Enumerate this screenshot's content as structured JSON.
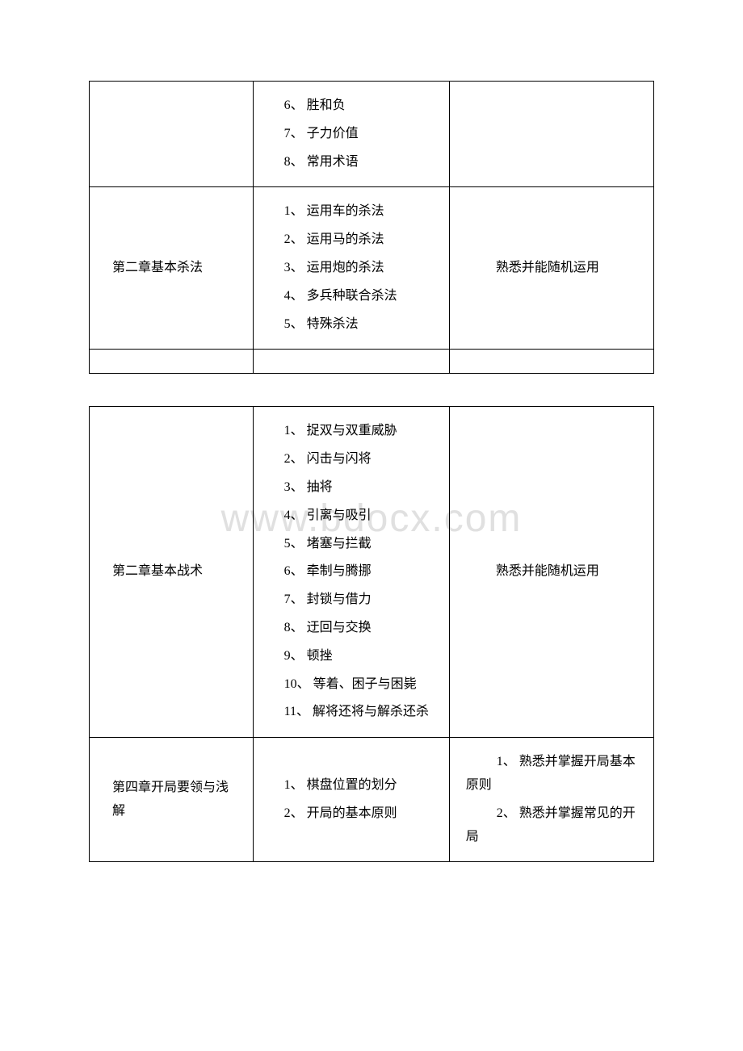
{
  "watermark": "www.bdocx.com",
  "table1": {
    "rows": [
      {
        "col1": "",
        "col2_items": [
          {
            "text": "6、 胜和负",
            "wrap": false
          },
          {
            "text": "7、 子力价值",
            "wrap": false
          },
          {
            "text": "8、 常用术语",
            "wrap": false
          }
        ],
        "col3": ""
      },
      {
        "col1": "第二章基本杀法",
        "col2_items": [
          {
            "text": "1、 运用车的杀法",
            "wrap": false
          },
          {
            "text": "2、 运用马的杀法",
            "wrap": false
          },
          {
            "text": "3、 运用炮的杀法",
            "wrap": false
          },
          {
            "text": "4、 多兵种联合杀法",
            "wrap": true
          },
          {
            "text": "5、 特殊杀法",
            "wrap": false
          }
        ],
        "col3": "熟悉并能随机运用",
        "col3_centered": true
      }
    ]
  },
  "table2": {
    "rows": [
      {
        "col1": "第二章基本战术",
        "col2_items": [
          {
            "text": "1、 捉双与双重威胁",
            "wrap": true
          },
          {
            "text": "2、 闪击与闪将",
            "wrap": false
          },
          {
            "text": "3、 抽将",
            "wrap": false
          },
          {
            "text": "4、 引离与吸引",
            "wrap": false
          },
          {
            "text": "5、 堵塞与拦截",
            "wrap": false
          },
          {
            "text": "6、 牵制与腾挪",
            "wrap": false
          },
          {
            "text": "7、 封锁与借力",
            "wrap": false
          },
          {
            "text": "8、 迂回与交换",
            "wrap": false
          },
          {
            "text": "9、 顿挫",
            "wrap": false
          },
          {
            "text": "10、 等着、困子与困毙",
            "wrap": true
          },
          {
            "text": "11、 解将还将与解杀还杀",
            "wrap": true
          }
        ],
        "col3": "熟悉并能随机运用",
        "col3_centered": true
      },
      {
        "col1": "第四章开局要领与浅 解",
        "col2_items": [
          {
            "text": "1、 棋盘位置的划分",
            "wrap": true
          },
          {
            "text": "2、 开局的基本原则",
            "wrap": true
          }
        ],
        "col3_items": [
          {
            "text": "1、 熟悉并掌握开局基本 原则"
          },
          {
            "text": "2、 熟悉并掌握常见的开 局"
          }
        ]
      }
    ]
  }
}
